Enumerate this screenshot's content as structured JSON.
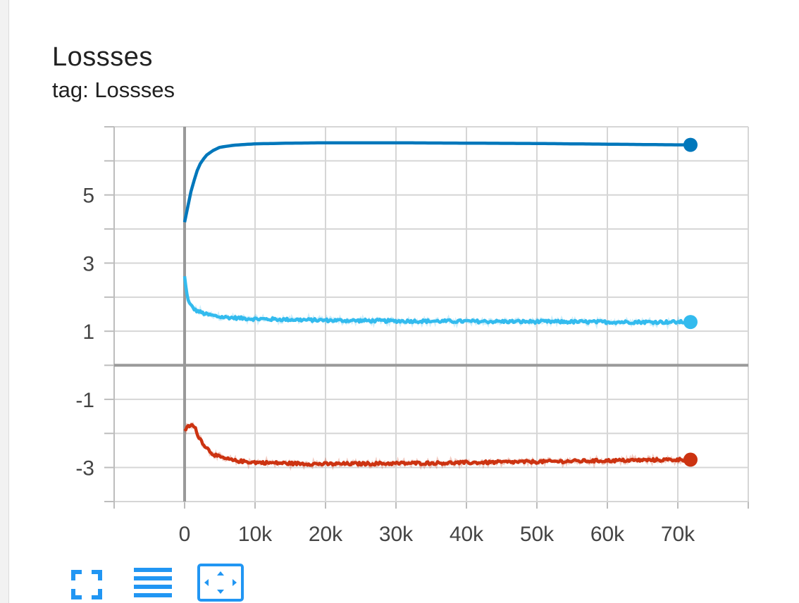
{
  "card": {
    "title": "Lossses",
    "tag_line": "tag: Lossses"
  },
  "chart_data": {
    "type": "line",
    "title": "Lossses",
    "subtitle": "tag: Lossses",
    "xlabel": "",
    "ylabel": "",
    "xlim": [
      -10000,
      80000
    ],
    "ylim": [
      -4,
      7
    ],
    "x_ticks": [
      0,
      10000,
      20000,
      30000,
      40000,
      50000,
      60000,
      70000
    ],
    "x_tick_labels": [
      "0",
      "10k",
      "20k",
      "30k",
      "40k",
      "50k",
      "60k",
      "70k"
    ],
    "y_ticks": [
      5,
      3,
      1,
      -1,
      -3
    ],
    "y_tick_labels": [
      "5",
      "3",
      "1",
      "-1",
      "-3"
    ],
    "grid": true,
    "legend": "none",
    "series": [
      {
        "color": "#0077bb",
        "x": [
          0,
          500,
          1000,
          2000,
          3000,
          4000,
          5000,
          7000,
          10000,
          15000,
          20000,
          30000,
          40000,
          50000,
          60000,
          70000,
          71800
        ],
        "y": [
          4.2,
          4.7,
          5.2,
          5.85,
          6.15,
          6.3,
          6.4,
          6.46,
          6.5,
          6.52,
          6.53,
          6.53,
          6.52,
          6.51,
          6.49,
          6.47,
          6.47
        ],
        "noisy": false
      },
      {
        "color": "#33bbee",
        "x": [
          0,
          300,
          700,
          1500,
          3000,
          5000,
          8000,
          10000,
          15000,
          20000,
          30000,
          40000,
          50000,
          60000,
          70000,
          71800
        ],
        "y": [
          2.6,
          2.1,
          1.8,
          1.62,
          1.5,
          1.42,
          1.38,
          1.36,
          1.34,
          1.32,
          1.3,
          1.29,
          1.28,
          1.27,
          1.27,
          1.27
        ],
        "noisy": true
      },
      {
        "color": "#cc3311",
        "x": [
          0,
          500,
          1000,
          1500,
          2000,
          3000,
          4000,
          5000,
          7000,
          10000,
          15000,
          20000,
          30000,
          40000,
          50000,
          60000,
          70000,
          71800
        ],
        "y": [
          -1.9,
          -1.8,
          -1.75,
          -1.85,
          -2.1,
          -2.4,
          -2.6,
          -2.7,
          -2.8,
          -2.85,
          -2.88,
          -2.9,
          -2.88,
          -2.86,
          -2.83,
          -2.8,
          -2.77,
          -2.77
        ],
        "noisy": true
      }
    ]
  },
  "toolbar": {
    "fullscreen_icon": "fullscreen-icon",
    "data_table_icon": "list-icon",
    "fit_domain_icon": "fit-domain-icon",
    "accent_color": "#2196f3"
  }
}
